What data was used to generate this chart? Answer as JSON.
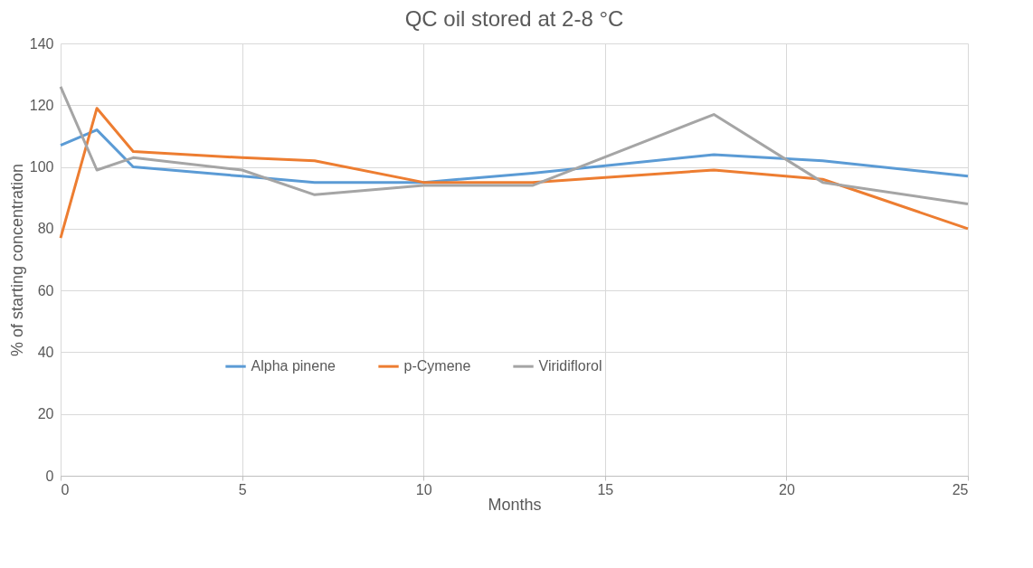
{
  "chart_data": {
    "type": "line",
    "title": "QC oil stored at 2-8 °C",
    "xlabel": "Months",
    "ylabel": "% of starting concentration",
    "x": [
      0,
      1,
      2,
      5,
      7,
      10,
      13,
      18,
      21,
      25
    ],
    "series": [
      {
        "name": "Alpha pinene",
        "color": "#5b9bd5",
        "values": [
          107,
          112,
          100,
          97,
          95,
          95,
          98,
          104,
          102,
          97
        ]
      },
      {
        "name": "p-Cymene",
        "color": "#ed7d31",
        "values": [
          77,
          119,
          105,
          103,
          102,
          95,
          95,
          99,
          96,
          80
        ]
      },
      {
        "name": "Viridiflorol",
        "color": "#a5a5a5",
        "values": [
          126,
          99,
          103,
          99,
          91,
          94,
          94,
          117,
          95,
          88
        ]
      }
    ],
    "xlim": [
      0,
      25
    ],
    "xticks": [
      0,
      5,
      10,
      15,
      20,
      25
    ],
    "ylim": [
      0,
      140
    ],
    "yticks": [
      0,
      20,
      40,
      60,
      80,
      100,
      120,
      140
    ],
    "grid": true,
    "legend": "bottom",
    "marker": "none",
    "line_style": "solid"
  }
}
